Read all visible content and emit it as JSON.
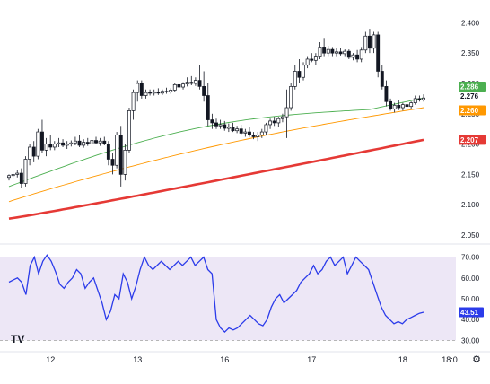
{
  "brand": {
    "logo_text": "TV"
  },
  "colors": {
    "up": "#131722",
    "down": "#131722",
    "ma_fast": "#4caf50",
    "ma_mid": "#ff9800",
    "ma_slow": "#e53935",
    "rsi": "#2b3bea",
    "rsi_band_fill": "#ede7f6",
    "rsi_band_border": "#9e9e9e",
    "gridline": "#f0f3fa"
  },
  "chart_data": [
    {
      "type": "candlestick",
      "title": "",
      "ylim": [
        2.05,
        2.405
      ],
      "y_ticks": [
        2.05,
        2.1,
        2.15,
        2.2,
        2.25,
        2.3,
        2.35,
        2.4
      ],
      "y_tick_labels": [
        "2.050",
        "2.100",
        "2.150",
        "2.200",
        "2.250",
        "2.300",
        "2.350",
        "2.400"
      ],
      "x_tick_labels": [
        "12",
        "13",
        "16",
        "17",
        "18",
        "18:0"
      ],
      "x_tick_index": [
        10,
        31,
        52,
        73,
        95,
        116
      ],
      "grid": false,
      "ohlc": [
        [
          2.145,
          2.15,
          2.14,
          2.148
        ],
        [
          2.148,
          2.155,
          2.142,
          2.15
        ],
        [
          2.15,
          2.158,
          2.145,
          2.152
        ],
        [
          2.152,
          2.16,
          2.128,
          2.135
        ],
        [
          2.135,
          2.18,
          2.13,
          2.175
        ],
        [
          2.175,
          2.2,
          2.165,
          2.195
        ],
        [
          2.195,
          2.205,
          2.17,
          2.18
        ],
        [
          2.18,
          2.225,
          2.175,
          2.22
        ],
        [
          2.22,
          2.24,
          2.185,
          2.19
        ],
        [
          2.19,
          2.21,
          2.18,
          2.2
        ],
        [
          2.2,
          2.215,
          2.19,
          2.195
        ],
        [
          2.195,
          2.205,
          2.19,
          2.2
        ],
        [
          2.2,
          2.21,
          2.195,
          2.202
        ],
        [
          2.202,
          2.208,
          2.195,
          2.198
        ],
        [
          2.198,
          2.205,
          2.192,
          2.2
        ],
        [
          2.2,
          2.206,
          2.196,
          2.202
        ],
        [
          2.202,
          2.212,
          2.198,
          2.205
        ],
        [
          2.205,
          2.215,
          2.195,
          2.198
        ],
        [
          2.198,
          2.208,
          2.194,
          2.203
        ],
        [
          2.203,
          2.21,
          2.197,
          2.2
        ],
        [
          2.2,
          2.212,
          2.198,
          2.206
        ],
        [
          2.206,
          2.212,
          2.2,
          2.202
        ],
        [
          2.202,
          2.21,
          2.197,
          2.205
        ],
        [
          2.205,
          2.212,
          2.198,
          2.2
        ],
        [
          2.2,
          2.205,
          2.165,
          2.175
        ],
        [
          2.175,
          2.185,
          2.15,
          2.165
        ],
        [
          2.165,
          2.22,
          2.16,
          2.215
        ],
        [
          2.215,
          2.23,
          2.13,
          2.15
        ],
        [
          2.15,
          2.2,
          2.14,
          2.19
        ],
        [
          2.19,
          2.26,
          2.185,
          2.255
        ],
        [
          2.255,
          2.29,
          2.24,
          2.285
        ],
        [
          2.285,
          2.305,
          2.27,
          2.3
        ],
        [
          2.3,
          2.305,
          2.275,
          2.28
        ],
        [
          2.28,
          2.29,
          2.275,
          2.285
        ],
        [
          2.285,
          2.29,
          2.28,
          2.284
        ],
        [
          2.284,
          2.29,
          2.28,
          2.286
        ],
        [
          2.286,
          2.292,
          2.281,
          2.284
        ],
        [
          2.284,
          2.29,
          2.281,
          2.287
        ],
        [
          2.287,
          2.293,
          2.283,
          2.286
        ],
        [
          2.286,
          2.292,
          2.283,
          2.289
        ],
        [
          2.289,
          2.3,
          2.286,
          2.298
        ],
        [
          2.298,
          2.305,
          2.292,
          2.294
        ],
        [
          2.294,
          2.302,
          2.29,
          2.299
        ],
        [
          2.299,
          2.31,
          2.295,
          2.302
        ],
        [
          2.302,
          2.312,
          2.297,
          2.3
        ],
        [
          2.3,
          2.31,
          2.296,
          2.305
        ],
        [
          2.305,
          2.33,
          2.29,
          2.295
        ],
        [
          2.295,
          2.32,
          2.27,
          2.28
        ],
        [
          2.28,
          2.3,
          2.23,
          2.24
        ],
        [
          2.24,
          2.25,
          2.225,
          2.235
        ],
        [
          2.235,
          2.242,
          2.225,
          2.23
        ],
        [
          2.23,
          2.24,
          2.225,
          2.232
        ],
        [
          2.232,
          2.238,
          2.222,
          2.226
        ],
        [
          2.226,
          2.234,
          2.22,
          2.228
        ],
        [
          2.228,
          2.235,
          2.22,
          2.222
        ],
        [
          2.222,
          2.23,
          2.218,
          2.225
        ],
        [
          2.225,
          2.232,
          2.215,
          2.218
        ],
        [
          2.218,
          2.225,
          2.212,
          2.22
        ],
        [
          2.22,
          2.228,
          2.212,
          2.215
        ],
        [
          2.215,
          2.22,
          2.208,
          2.212
        ],
        [
          2.212,
          2.22,
          2.205,
          2.215
        ],
        [
          2.215,
          2.225,
          2.21,
          2.22
        ],
        [
          2.22,
          2.235,
          2.215,
          2.232
        ],
        [
          2.232,
          2.242,
          2.225,
          2.238
        ],
        [
          2.238,
          2.245,
          2.23,
          2.235
        ],
        [
          2.235,
          2.245,
          2.228,
          2.242
        ],
        [
          2.242,
          2.25,
          2.236,
          2.245
        ],
        [
          2.245,
          2.29,
          2.21,
          2.26
        ],
        [
          2.26,
          2.3,
          2.255,
          2.295
        ],
        [
          2.295,
          2.33,
          2.29,
          2.32
        ],
        [
          2.32,
          2.34,
          2.3,
          2.31
        ],
        [
          2.31,
          2.335,
          2.305,
          2.33
        ],
        [
          2.33,
          2.345,
          2.325,
          2.34
        ],
        [
          2.34,
          2.35,
          2.335,
          2.338
        ],
        [
          2.338,
          2.35,
          2.33,
          2.345
        ],
        [
          2.345,
          2.368,
          2.34,
          2.36
        ],
        [
          2.36,
          2.375,
          2.345,
          2.35
        ],
        [
          2.35,
          2.362,
          2.345,
          2.356
        ],
        [
          2.356,
          2.36,
          2.345,
          2.35
        ],
        [
          2.35,
          2.358,
          2.345,
          2.352
        ],
        [
          2.352,
          2.358,
          2.346,
          2.349
        ],
        [
          2.349,
          2.356,
          2.345,
          2.353
        ],
        [
          2.353,
          2.356,
          2.34,
          2.343
        ],
        [
          2.343,
          2.35,
          2.338,
          2.347
        ],
        [
          2.347,
          2.355,
          2.335,
          2.34
        ],
        [
          2.34,
          2.36,
          2.335,
          2.355
        ],
        [
          2.355,
          2.385,
          2.35,
          2.378
        ],
        [
          2.378,
          2.39,
          2.35,
          2.358
        ],
        [
          2.358,
          2.385,
          2.35,
          2.38
        ],
        [
          2.38,
          2.385,
          2.31,
          2.32
        ],
        [
          2.32,
          2.33,
          2.29,
          2.295
        ],
        [
          2.295,
          2.305,
          2.262,
          2.27
        ],
        [
          2.27,
          2.275,
          2.255,
          2.258
        ],
        [
          2.258,
          2.268,
          2.252,
          2.264
        ],
        [
          2.264,
          2.272,
          2.256,
          2.26
        ],
        [
          2.26,
          2.268,
          2.255,
          2.265
        ],
        [
          2.265,
          2.272,
          2.26,
          2.262
        ],
        [
          2.262,
          2.27,
          2.258,
          2.268
        ],
        [
          2.268,
          2.28,
          2.265,
          2.275
        ],
        [
          2.275,
          2.28,
          2.27,
          2.273
        ],
        [
          2.273,
          2.282,
          2.27,
          2.276
        ]
      ],
      "moving_averages": [
        {
          "name": "",
          "color_key": "ma_fast",
          "from": 2.13,
          "to": 2.286,
          "last_value_label": "2.286"
        },
        {
          "name": "",
          "color_key": "ma_mid",
          "from": 2.105,
          "to": 2.26,
          "last_value_label": "2.260"
        },
        {
          "name": "",
          "color_key": "ma_slow",
          "from": 2.077,
          "to": 2.207,
          "last_value_label": "2.207"
        }
      ],
      "last_price_label": "2.276"
    },
    {
      "type": "line",
      "title": "",
      "ylim": [
        28,
        72
      ],
      "y_ticks": [
        30,
        40,
        50,
        60,
        70
      ],
      "y_tick_labels": [
        "30.00",
        "40.00",
        "50.00",
        "60.00",
        "70.00"
      ],
      "band": [
        30,
        70
      ],
      "series": [
        {
          "name": "",
          "values": [
            58.0,
            59.0,
            60.0,
            58.0,
            52.0,
            66.0,
            70.0,
            62.0,
            68.0,
            71.0,
            68.0,
            63.0,
            57.0,
            55.0,
            58.0,
            60.0,
            64.0,
            62.0,
            55.0,
            58.0,
            60.0,
            54.0,
            48.0,
            40.0,
            44.0,
            52.0,
            50.0,
            62.0,
            58.0,
            50.0,
            56.0,
            64.0,
            70.0,
            66.0,
            64.0,
            66.0,
            68.0,
            66.0,
            64.0,
            66.0,
            68.0,
            66.0,
            68.0,
            70.0,
            66.0,
            68.0,
            70.0,
            64.0,
            62.0,
            40.0,
            36.0,
            34.0,
            36.0,
            35.0,
            36.0,
            38.0,
            40.0,
            42.0,
            40.0,
            38.0,
            37.0,
            40.0,
            46.0,
            50.0,
            52.0,
            48.0,
            50.0,
            52.0,
            54.0,
            58.0,
            60.0,
            62.0,
            66.0,
            62.0,
            64.0,
            68.0,
            70.0,
            66.0,
            68.0,
            70.0,
            62.0,
            66.0,
            70.0,
            68.0,
            66.0,
            64.0,
            58.0,
            52.0,
            46.0,
            42.0,
            40.0,
            38.0,
            39.0,
            38.0,
            40.0,
            41.0,
            42.0,
            43.0,
            43.51
          ]
        }
      ],
      "last_value_label": "43.51"
    }
  ]
}
